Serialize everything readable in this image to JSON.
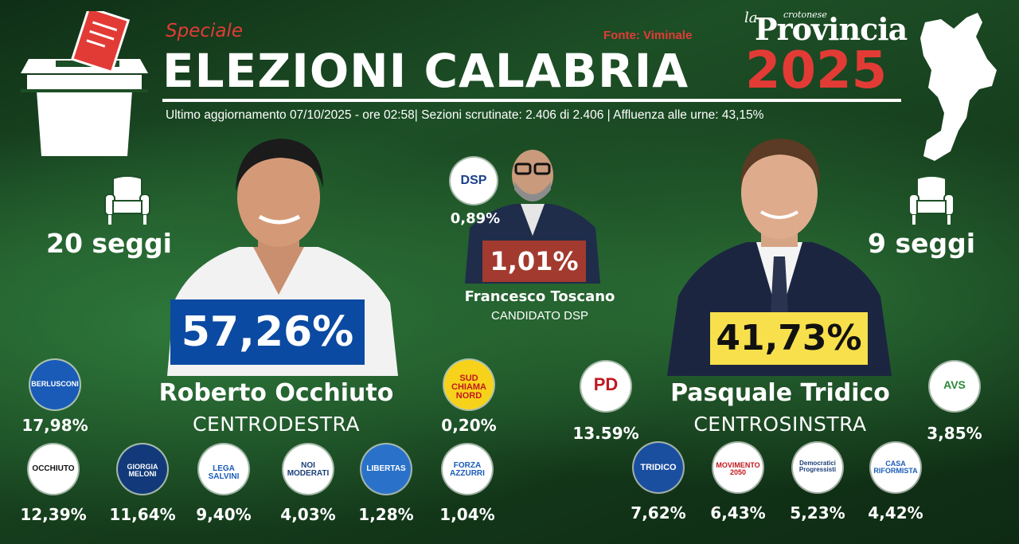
{
  "header": {
    "speciale": "Speciale",
    "title": "ELEZIONI CALABRIA",
    "year": "2025",
    "fonte": "Fonte: Viminale",
    "logo_prefix": "la",
    "logo_small": "crotonese",
    "logo_main": "Provincia",
    "update": "Ultimo aggiornamento 07/10/2025 - ore 02:58| Sezioni scrutinate: 2.406 di 2.406 | Affluenza alle urne: 43,15%"
  },
  "colors": {
    "accent_red": "#e23b35",
    "occhiuto_box": "#0b4aa2",
    "tridico_box": "#f7e04b",
    "toscano_box": "#a33a2f",
    "background": "#1d4f26"
  },
  "occhiuto": {
    "seats": "20 seggi",
    "percent": "57,26%",
    "name": "Roberto Occhiuto",
    "coalition": "CENTRODESTRA"
  },
  "tridico": {
    "seats": "9 seggi",
    "percent": "41,73%",
    "name": "Pasquale Tridico",
    "coalition": "CENTROSINSTRA"
  },
  "toscano": {
    "party_percent": "0,89%",
    "percent": "1,01%",
    "name": "Francesco Toscano",
    "coalition": "CANDIDATO DSP",
    "party_logo": "DSP"
  },
  "parties_right": [
    {
      "label": "BERLUSCONI",
      "percent": "17,98%"
    },
    {
      "label": "OCCHIUTO",
      "percent": "12,39%"
    },
    {
      "label": "GIORGIA MELONI",
      "percent": "11,64%"
    },
    {
      "label": "LEGA SALVINI",
      "percent": "9,40%"
    },
    {
      "label": "NOI MODERATI",
      "percent": "4,03%"
    },
    {
      "label": "LIBERTAS",
      "percent": "1,28%"
    },
    {
      "label": "FORZA AZZURRI",
      "percent": "1,04%"
    },
    {
      "label": "SUD CHIAMA NORD",
      "percent": "0,20%"
    }
  ],
  "parties_left": [
    {
      "label": "PD",
      "percent": "13.59%"
    },
    {
      "label": "AVS",
      "percent": "3,85%"
    },
    {
      "label": "TRIDICO",
      "percent": "7,62%"
    },
    {
      "label": "MOVIMENTO 2050",
      "percent": "6,43%"
    },
    {
      "label": "Democratici Progressisti",
      "percent": "5,23%"
    },
    {
      "label": "CASA RIFORMISTA",
      "percent": "4,42%"
    }
  ],
  "icons": [
    "ballot-box-icon",
    "calabria-map-icon",
    "armchair-icon"
  ]
}
